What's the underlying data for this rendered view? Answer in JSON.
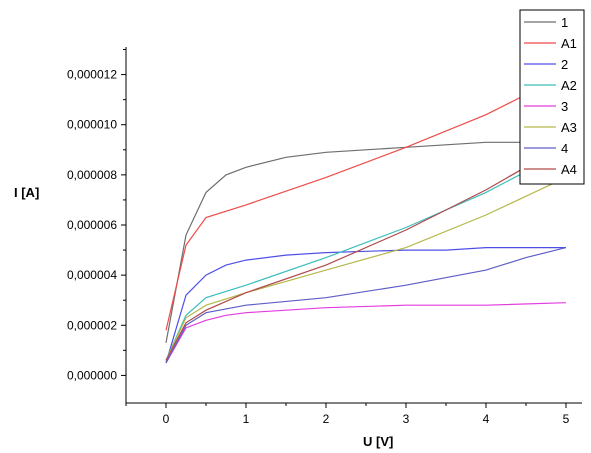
{
  "chart_data": {
    "type": "line",
    "xlabel": "U [V]",
    "ylabel": "I [A]",
    "xlim": [
      -0.5,
      5.2
    ],
    "ylim": [
      -1.1e-06,
      1.31e-05
    ],
    "x_ticks": [
      0,
      1,
      2,
      3,
      4,
      5
    ],
    "x_tick_labels": [
      "0",
      "1",
      "2",
      "3",
      "4",
      "5"
    ],
    "y_ticks": [
      0,
      2e-06,
      4e-06,
      6e-06,
      8e-06,
      1e-05,
      1.2e-05
    ],
    "y_tick_labels": [
      "0,000000",
      "0,000002",
      "0,000004",
      "0,000006",
      "0,000008",
      "0,000010",
      "0,000012"
    ],
    "grid": false,
    "legend_position": "top-right",
    "series": [
      {
        "name": "1",
        "color": "#6e6e6e",
        "x": [
          0,
          0.25,
          0.5,
          0.75,
          1,
          1.5,
          2,
          2.5,
          3,
          3.5,
          4,
          4.5,
          5
        ],
        "y": [
          1.3e-06,
          5.6e-06,
          7.3e-06,
          8e-06,
          8.3e-06,
          8.7e-06,
          8.9e-06,
          9e-06,
          9.1e-06,
          9.2e-06,
          9.3e-06,
          9.3e-06,
          9.4e-06
        ]
      },
      {
        "name": "A1",
        "color": "#ee4b4b",
        "x": [
          0,
          0.25,
          0.5,
          1,
          2,
          3,
          4,
          4.5
        ],
        "y": [
          1.8e-06,
          5.2e-06,
          6.3e-06,
          6.8e-06,
          7.9e-06,
          9.1e-06,
          1.04e-05,
          1.12e-05
        ]
      },
      {
        "name": "2",
        "color": "#4f4fe8",
        "x": [
          0,
          0.25,
          0.5,
          0.75,
          1,
          1.5,
          2,
          2.5,
          3,
          3.5,
          4,
          4.5,
          5
        ],
        "y": [
          5e-07,
          3.2e-06,
          4e-06,
          4.4e-06,
          4.6e-06,
          4.8e-06,
          4.9e-06,
          4.95e-06,
          5e-06,
          5e-06,
          5.1e-06,
          5.1e-06,
          5.1e-06
        ]
      },
      {
        "name": "A2",
        "color": "#3dbdbd",
        "x": [
          0,
          0.25,
          0.5,
          1,
          2,
          3,
          4,
          4.6
        ],
        "y": [
          6e-07,
          2.4e-06,
          3.1e-06,
          3.6e-06,
          4.7e-06,
          5.9e-06,
          7.3e-06,
          8.3e-06
        ]
      },
      {
        "name": "3",
        "color": "#e33de0",
        "x": [
          0,
          0.25,
          0.5,
          0.75,
          1,
          2,
          3,
          4,
          5
        ],
        "y": [
          5e-07,
          1.9e-06,
          2.2e-06,
          2.4e-06,
          2.5e-06,
          2.7e-06,
          2.8e-06,
          2.8e-06,
          2.9e-06
        ]
      },
      {
        "name": "A3",
        "color": "#b5b84a",
        "x": [
          0,
          0.25,
          0.5,
          1,
          2,
          3,
          4,
          5
        ],
        "y": [
          6e-07,
          2.3e-06,
          2.8e-06,
          3.3e-06,
          4.2e-06,
          5.1e-06,
          6.4e-06,
          7.9e-06
        ]
      },
      {
        "name": "4",
        "color": "#5e5ec8",
        "x": [
          0,
          0.25,
          0.5,
          1,
          2,
          3,
          4,
          4.5,
          5
        ],
        "y": [
          5e-07,
          2e-06,
          2.5e-06,
          2.8e-06,
          3.1e-06,
          3.6e-06,
          4.2e-06,
          4.7e-06,
          5.1e-06
        ]
      },
      {
        "name": "A4",
        "color": "#b04a4a",
        "x": [
          0,
          0.25,
          0.5,
          1,
          2,
          3,
          4,
          4.6
        ],
        "y": [
          6e-07,
          2.1e-06,
          2.6e-06,
          3.3e-06,
          4.4e-06,
          5.8e-06,
          7.4e-06,
          8.5e-06
        ]
      }
    ]
  }
}
